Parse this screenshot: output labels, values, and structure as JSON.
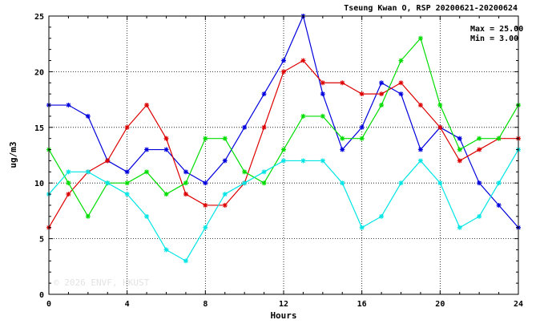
{
  "chart_data": {
    "type": "line",
    "title": "Tseung Kwan O, RSP 20200621-20200624",
    "xlabel": "Hours",
    "ylabel": "ug/m3",
    "xlim": [
      0,
      24
    ],
    "ylim": [
      0,
      25
    ],
    "xticks": [
      0,
      4,
      8,
      12,
      16,
      20,
      24
    ],
    "yticks": [
      0,
      5,
      10,
      15,
      20,
      25
    ],
    "grid": true,
    "stats": {
      "max_label": "Max = 25.00",
      "min_label": "Min =  3.00"
    },
    "watermark": "© 2026 ENVF, HKUST",
    "x": [
      0,
      1,
      2,
      3,
      4,
      5,
      6,
      7,
      8,
      9,
      10,
      11,
      12,
      13,
      14,
      15,
      16,
      17,
      18,
      19,
      20,
      21,
      22,
      23,
      24
    ],
    "series": [
      {
        "color": "#0000dd",
        "values": [
          17,
          17,
          16,
          12,
          11,
          13,
          13,
          11,
          10,
          12,
          15,
          18,
          21,
          25,
          18,
          13,
          15,
          19,
          18,
          13,
          15,
          14,
          10,
          8,
          6
        ]
      },
      {
        "color": "#dd0000",
        "values": [
          6,
          9,
          11,
          12,
          15,
          17,
          14,
          9,
          8,
          8,
          10,
          15,
          20,
          21,
          19,
          19,
          18,
          18,
          19,
          17,
          15,
          12,
          13,
          14,
          14
        ]
      },
      {
        "color": "#00dd00",
        "values": [
          13,
          10,
          7,
          10,
          10,
          11,
          9,
          10,
          14,
          14,
          11,
          10,
          13,
          16,
          16,
          14,
          14,
          17,
          21,
          23,
          17,
          13,
          14,
          14,
          17
        ]
      },
      {
        "color": "#00e5e5",
        "values": [
          9,
          11,
          11,
          10,
          9,
          7,
          4,
          3,
          6,
          9,
          10,
          11,
          12,
          12,
          12,
          10,
          6,
          7,
          10,
          12,
          10,
          6,
          7,
          10,
          13
        ]
      }
    ]
  }
}
